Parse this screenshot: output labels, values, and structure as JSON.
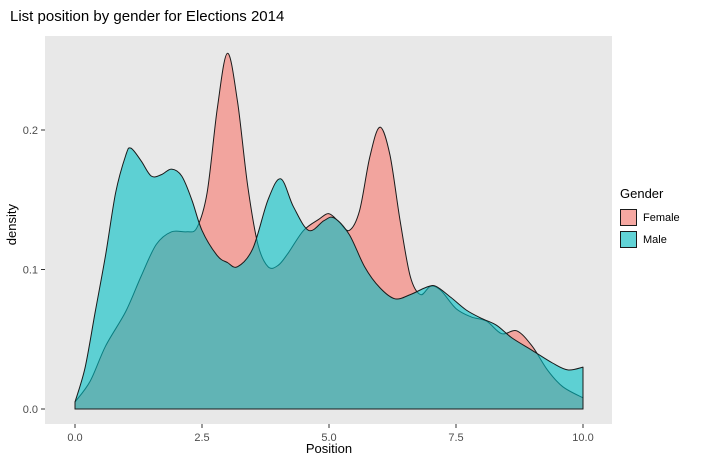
{
  "chart_data": {
    "type": "area",
    "subtype": "density",
    "title": "List position by gender for Elections 2014",
    "xlabel": "Position",
    "ylabel": "density",
    "xlim": [
      0,
      10
    ],
    "ylim": [
      0,
      0.26
    ],
    "x_ticks": [
      "0.0",
      "2.5",
      "5.0",
      "7.5",
      "10.0"
    ],
    "x_tick_values": [
      0,
      2.5,
      5,
      7.5,
      10
    ],
    "y_ticks": [
      "0.0",
      "0.1",
      "0.2"
    ],
    "y_tick_values": [
      0,
      0.1,
      0.2
    ],
    "grid": false,
    "panel_background": "#E8E8E8",
    "outline_color": "#1A1A1A",
    "fill_opacity": 0.6,
    "legend": {
      "title": "Gender",
      "position": "right",
      "entries": [
        {
          "label": "Female",
          "color": "#F8766D"
        },
        {
          "label": "Male",
          "color": "#00BFC4"
        }
      ]
    },
    "series": [
      {
        "name": "Female",
        "color": "#F8766D",
        "points": [
          [
            0.0,
            0.005
          ],
          [
            0.3,
            0.02
          ],
          [
            0.6,
            0.045
          ],
          [
            1.0,
            0.07
          ],
          [
            1.3,
            0.095
          ],
          [
            1.6,
            0.118
          ],
          [
            1.9,
            0.127
          ],
          [
            2.2,
            0.127
          ],
          [
            2.4,
            0.13
          ],
          [
            2.6,
            0.155
          ],
          [
            2.8,
            0.215
          ],
          [
            3.0,
            0.255
          ],
          [
            3.2,
            0.22
          ],
          [
            3.4,
            0.16
          ],
          [
            3.6,
            0.118
          ],
          [
            3.8,
            0.102
          ],
          [
            4.0,
            0.103
          ],
          [
            4.2,
            0.112
          ],
          [
            4.5,
            0.128
          ],
          [
            4.8,
            0.136
          ],
          [
            5.0,
            0.14
          ],
          [
            5.2,
            0.134
          ],
          [
            5.4,
            0.128
          ],
          [
            5.6,
            0.142
          ],
          [
            5.8,
            0.18
          ],
          [
            6.0,
            0.202
          ],
          [
            6.2,
            0.182
          ],
          [
            6.4,
            0.135
          ],
          [
            6.6,
            0.095
          ],
          [
            6.8,
            0.082
          ],
          [
            7.0,
            0.088
          ],
          [
            7.2,
            0.085
          ],
          [
            7.5,
            0.072
          ],
          [
            7.8,
            0.066
          ],
          [
            8.1,
            0.063
          ],
          [
            8.4,
            0.054
          ],
          [
            8.7,
            0.056
          ],
          [
            9.0,
            0.045
          ],
          [
            9.3,
            0.028
          ],
          [
            9.6,
            0.016
          ],
          [
            10.0,
            0.008
          ]
        ]
      },
      {
        "name": "Male",
        "color": "#00BFC4",
        "points": [
          [
            0.0,
            0.005
          ],
          [
            0.2,
            0.03
          ],
          [
            0.4,
            0.07
          ],
          [
            0.6,
            0.11
          ],
          [
            0.8,
            0.155
          ],
          [
            1.0,
            0.182
          ],
          [
            1.1,
            0.187
          ],
          [
            1.3,
            0.178
          ],
          [
            1.5,
            0.167
          ],
          [
            1.7,
            0.168
          ],
          [
            1.9,
            0.172
          ],
          [
            2.1,
            0.167
          ],
          [
            2.3,
            0.15
          ],
          [
            2.5,
            0.128
          ],
          [
            2.8,
            0.11
          ],
          [
            3.0,
            0.105
          ],
          [
            3.2,
            0.102
          ],
          [
            3.5,
            0.115
          ],
          [
            3.8,
            0.15
          ],
          [
            4.05,
            0.165
          ],
          [
            4.3,
            0.145
          ],
          [
            4.6,
            0.128
          ],
          [
            4.9,
            0.135
          ],
          [
            5.1,
            0.137
          ],
          [
            5.4,
            0.125
          ],
          [
            5.7,
            0.102
          ],
          [
            6.0,
            0.087
          ],
          [
            6.3,
            0.079
          ],
          [
            6.6,
            0.082
          ],
          [
            6.9,
            0.087
          ],
          [
            7.1,
            0.088
          ],
          [
            7.4,
            0.08
          ],
          [
            7.7,
            0.071
          ],
          [
            8.0,
            0.065
          ],
          [
            8.3,
            0.06
          ],
          [
            8.6,
            0.051
          ],
          [
            9.0,
            0.042
          ],
          [
            9.4,
            0.033
          ],
          [
            9.7,
            0.028
          ],
          [
            10.0,
            0.03
          ]
        ]
      }
    ]
  }
}
